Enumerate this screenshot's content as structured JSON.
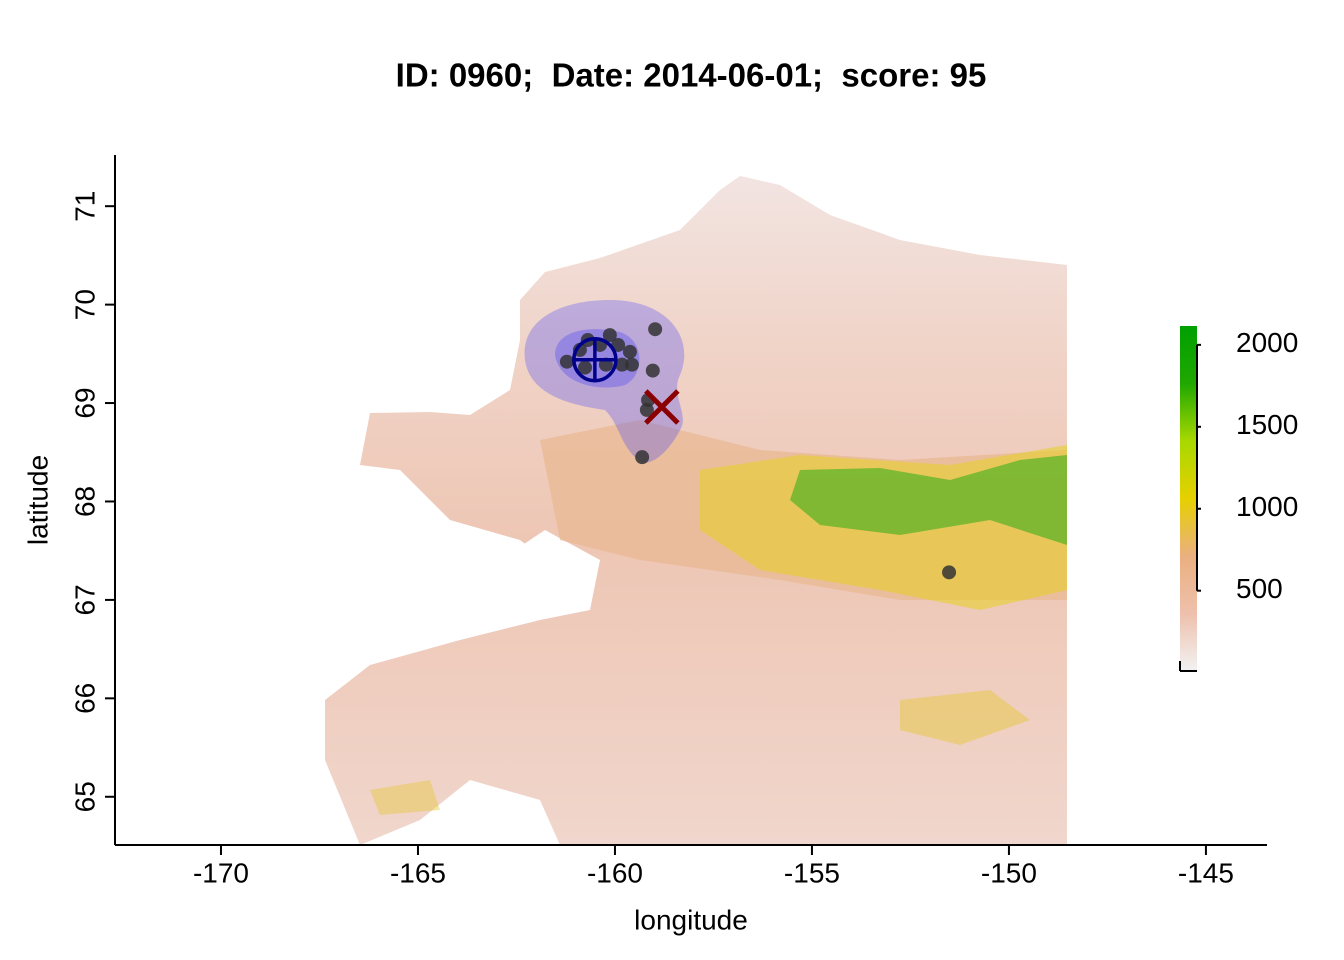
{
  "chart_data": {
    "type": "scatter",
    "title": "ID: 0960;  Date: 2014-06-01;  score: 95",
    "x_label": "longitude",
    "y_label": "latitude",
    "xlim": [
      -172.69,
      -143.45
    ],
    "ylim": [
      64.51,
      71.52
    ],
    "xticks": [
      -170,
      -165,
      -160,
      -155,
      -150,
      -145
    ],
    "yticks": [
      65,
      66,
      67,
      68,
      69,
      70,
      71
    ],
    "series": [
      {
        "marker": "dot",
        "color": "#333333",
        "x": [
          -161.22,
          -160.89,
          -160.69,
          -160.38,
          -160.13,
          -159.92,
          -159.62,
          -159.82,
          -159.57,
          -160.23,
          -160.76,
          -158.98,
          -159.04,
          -159.16,
          -159.19,
          -159.31,
          -151.52
        ],
        "y": [
          69.42,
          69.54,
          69.64,
          69.59,
          69.69,
          69.59,
          69.52,
          69.39,
          69.39,
          69.39,
          69.36,
          69.75,
          69.33,
          69.03,
          68.93,
          68.45,
          67.28
        ]
      },
      {
        "marker": "crosshair",
        "color": "#00008b",
        "x": [
          -160.51
        ],
        "y": [
          69.44
        ]
      },
      {
        "marker": "cross",
        "color": "#8b0000",
        "x": [
          -158.81
        ],
        "y": [
          68.96
        ]
      }
    ],
    "colorbar": {
      "zlim": [
        10,
        2115
      ],
      "ticks": [
        500,
        1000,
        1500,
        2000
      ],
      "colors": [
        "#f2f2f2",
        "#eec0ac",
        "#eab080",
        "#e6d000",
        "#a8d800",
        "#20a800",
        "#00a000"
      ]
    }
  }
}
